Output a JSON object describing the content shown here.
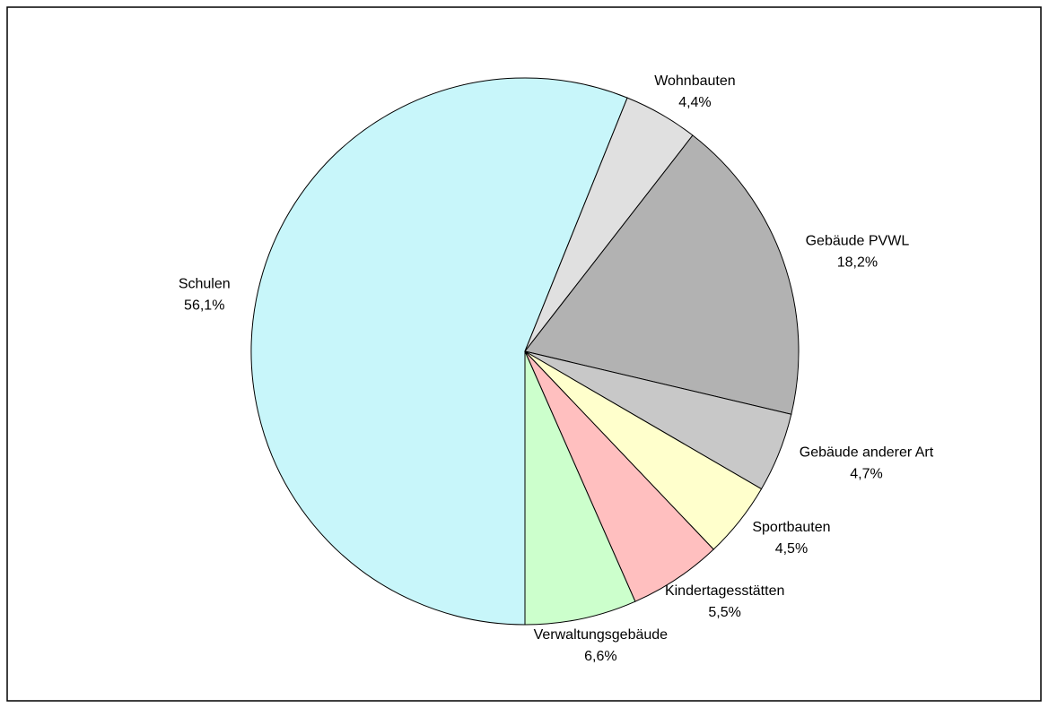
{
  "chart_data": {
    "type": "pie",
    "categories": [
      "Schulen",
      "Wohnbauten",
      "Gebäude PVWL",
      "Gebäude anderer Art",
      "Sportbauten",
      "Kindertagesstätten",
      "Verwaltungsgebäude"
    ],
    "values": [
      56.1,
      4.4,
      18.2,
      4.7,
      4.5,
      5.5,
      6.6
    ],
    "value_labels": [
      "56,1%",
      "4,4%",
      "18,2%",
      "4,7%",
      "4,5%",
      "5,5%",
      "6,6%"
    ],
    "colors": [
      "#c8f6fa",
      "#e0e0e0",
      "#b2b2b2",
      "#c8c8c8",
      "#ffffcc",
      "#ffbfbf",
      "#ccffcc"
    ]
  }
}
